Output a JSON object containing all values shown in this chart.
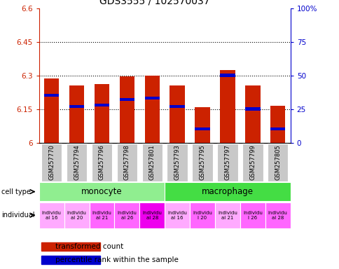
{
  "title": "GDS3555 / 102570037",
  "samples": [
    "GSM257770",
    "GSM257794",
    "GSM257796",
    "GSM257798",
    "GSM257801",
    "GSM257793",
    "GSM257795",
    "GSM257797",
    "GSM257799",
    "GSM257805"
  ],
  "red_values": [
    6.285,
    6.255,
    6.26,
    6.295,
    6.3,
    6.255,
    6.158,
    6.325,
    6.255,
    6.163
  ],
  "blue_percentiles": [
    35,
    27,
    28,
    32,
    33,
    27,
    10,
    50,
    25,
    10
  ],
  "y_min": 6.0,
  "y_max": 6.6,
  "y_ticks": [
    6.0,
    6.15,
    6.3,
    6.45,
    6.6
  ],
  "y_tick_labels": [
    "6",
    "6.15",
    "6.3",
    "6.45",
    "6.6"
  ],
  "y2_ticks": [
    0,
    25,
    50,
    75,
    100
  ],
  "y2_labels": [
    "0",
    "25",
    "50",
    "75",
    "100%"
  ],
  "individual_colors": [
    "#FFAAFF",
    "#FFAAFF",
    "#FF66FF",
    "#FF66FF",
    "#EE00EE",
    "#FFAAFF",
    "#FF66FF",
    "#FFAAFF",
    "#FF66FF",
    "#FF66FF"
  ],
  "ind_labels": [
    "individu\nal 16",
    "individu\nal 20",
    "individu\nal 21",
    "individu\nal 26",
    "individu\nal 28",
    "individu\nal 16",
    "individu\nl 20",
    "individu\nal 21",
    "individu\nl 26",
    "individu\nal 28"
  ],
  "bar_color": "#CC2200",
  "blue_color": "#0000CC",
  "monocyte_color": "#90EE90",
  "macrophage_color": "#44DD44",
  "label_bg": "#C8C8C8"
}
